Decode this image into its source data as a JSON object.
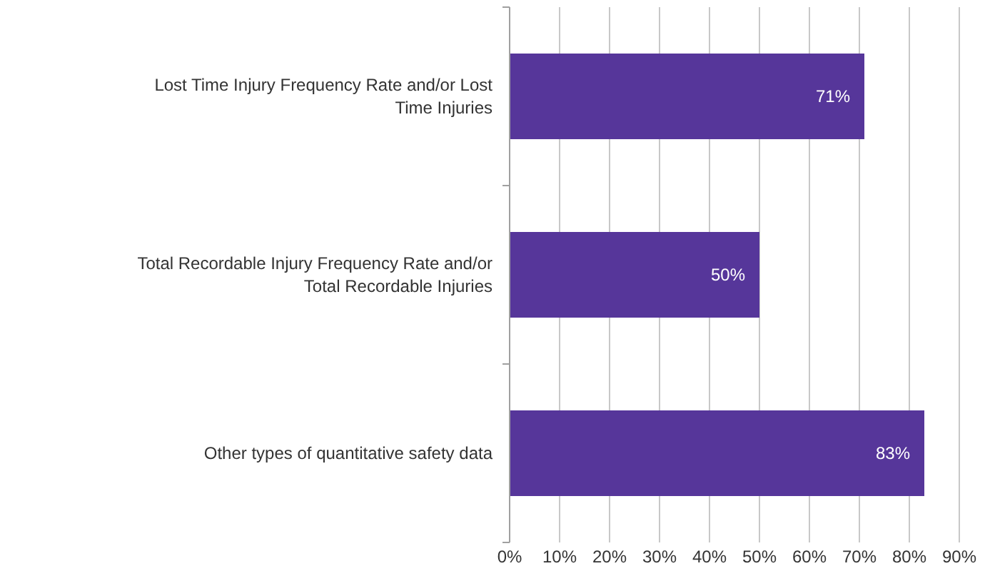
{
  "chart_data": {
    "type": "bar",
    "orientation": "horizontal",
    "categories": [
      "Lost Time Injury Frequency Rate and/or Lost Time Injuries",
      "Total Recordable Injury Frequency Rate and/or Total Recordable Injuries",
      "Other types of quantitative safety data"
    ],
    "values": [
      71,
      50,
      83
    ],
    "color": "#56369a",
    "value_labels": [
      "71%",
      "50%",
      "83%"
    ],
    "xlim": [
      0,
      90
    ],
    "xticks": [
      {
        "value": 0,
        "label": "0%"
      },
      {
        "value": 10,
        "label": "10%"
      },
      {
        "value": 20,
        "label": "20%"
      },
      {
        "value": 30,
        "label": "30%"
      },
      {
        "value": 40,
        "label": "40%"
      },
      {
        "value": 50,
        "label": "50%"
      },
      {
        "value": 60,
        "label": "60%"
      },
      {
        "value": 70,
        "label": "70%"
      },
      {
        "value": 80,
        "label": "80%"
      },
      {
        "value": 90,
        "label": "90%"
      }
    ],
    "grid": "x"
  }
}
